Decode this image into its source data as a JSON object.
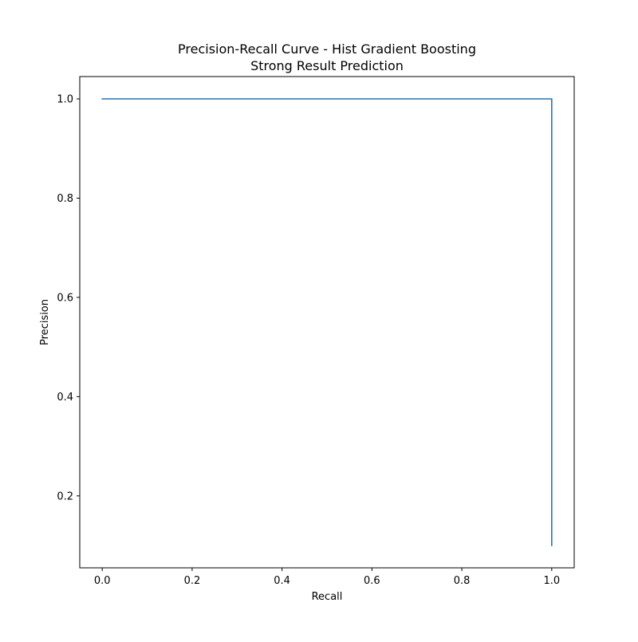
{
  "chart_data": {
    "type": "line",
    "title": "Precision-Recall Curve - Hist Gradient Boosting",
    "subtitle": "Strong Result Prediction",
    "xlabel": "Recall",
    "ylabel": "Precision",
    "xlim": [
      -0.05,
      1.05
    ],
    "ylim": [
      0.055,
      1.045
    ],
    "xticks": [
      0.0,
      0.2,
      0.4,
      0.6,
      0.8,
      1.0
    ],
    "xtick_labels": [
      "0.0",
      "0.2",
      "0.4",
      "0.6",
      "0.8",
      "1.0"
    ],
    "yticks": [
      0.2,
      0.4,
      0.6,
      0.8,
      1.0
    ],
    "ytick_labels": [
      "0.2",
      "0.4",
      "0.6",
      "0.8",
      "1.0"
    ],
    "grid": false,
    "series": [
      {
        "color": "#1f77b4",
        "x": [
          0.0,
          1.0,
          1.0
        ],
        "y": [
          1.0,
          1.0,
          0.1
        ]
      }
    ]
  }
}
